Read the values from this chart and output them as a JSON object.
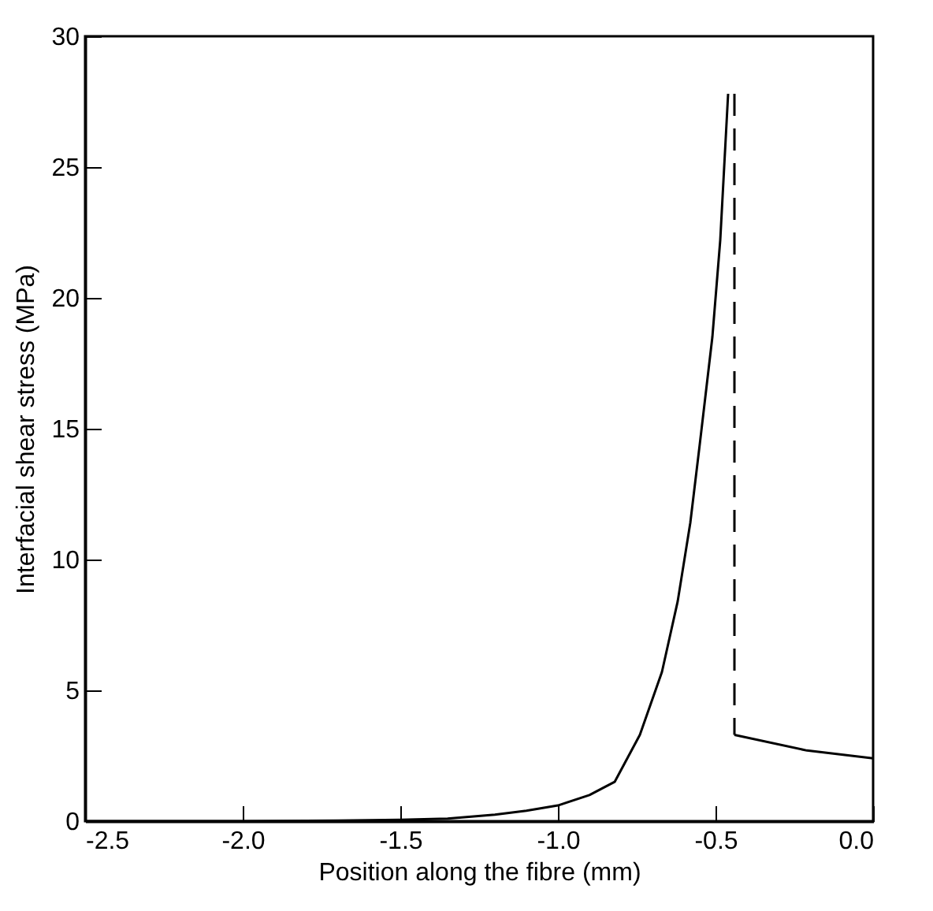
{
  "chart_data": {
    "type": "line",
    "xlabel": "Position along the fibre (mm)",
    "ylabel": "Interfacial shear stress (MPa)",
    "xlim": [
      -2.5,
      0
    ],
    "ylim": [
      0,
      30
    ],
    "xticks": [
      {
        "value": -2.5,
        "label": "-2.5"
      },
      {
        "value": -2,
        "label": "-2.0"
      },
      {
        "value": -1.5,
        "label": "-1.5"
      },
      {
        "value": -1,
        "label": "-1.0"
      },
      {
        "value": -0.5,
        "label": "-0.5"
      },
      {
        "value": 0,
        "label": "0.0"
      }
    ],
    "yticks": [
      0,
      5,
      10,
      15,
      20,
      25,
      30
    ],
    "series": [
      {
        "color": "#000000",
        "line_style": "solid",
        "x": [
          -2.5,
          -2.0,
          -1.7,
          -1.5,
          -1.35,
          -1.2,
          -1.1,
          -1.0,
          -0.9,
          -0.82,
          -0.74,
          -0.67,
          -0.62,
          -0.58,
          -0.55,
          -0.51,
          -0.485,
          -0.46
        ],
        "values": [
          0,
          0,
          0.02,
          0.05,
          0.1,
          0.25,
          0.4,
          0.6,
          1.0,
          1.5,
          3.3,
          5.7,
          8.4,
          11.4,
          14.4,
          18.5,
          22.2,
          27.8
        ]
      },
      {
        "color": "#000000",
        "line_style": "dashed",
        "x": [
          -0.44,
          -0.44
        ],
        "values": [
          27.8,
          3.3
        ]
      },
      {
        "color": "#000000",
        "line_style": "solid",
        "x": [
          -0.44,
          -0.21,
          0
        ],
        "values": [
          3.3,
          2.7,
          2.4
        ]
      }
    ]
  }
}
